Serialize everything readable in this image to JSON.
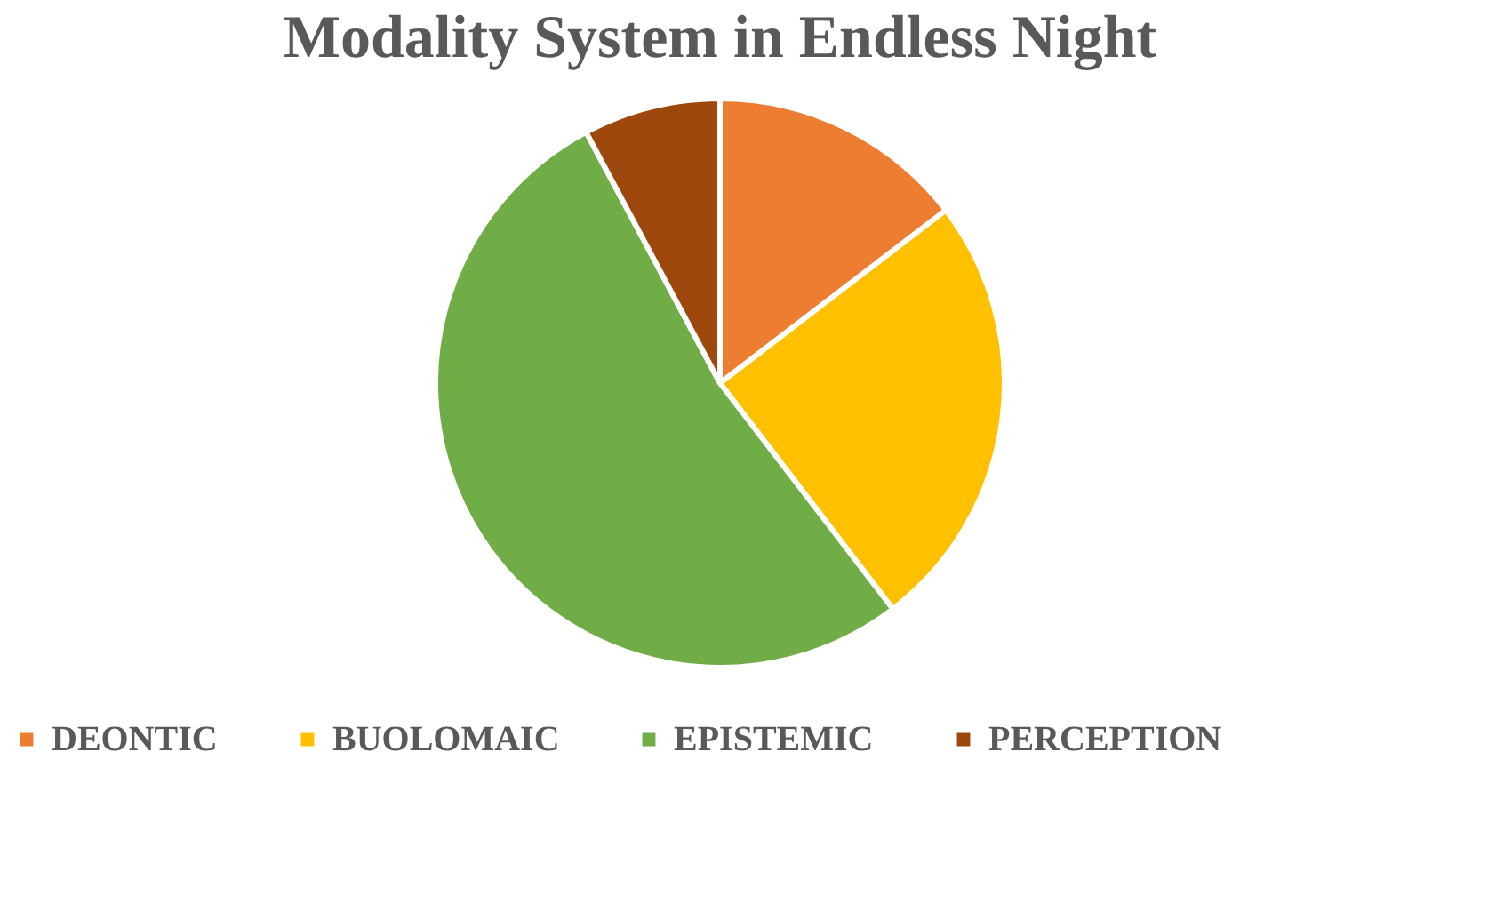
{
  "chart_data": {
    "type": "pie",
    "title": "Modality System in Endless Night",
    "categories": [
      "DEONTIC",
      "BUOLOMAIC",
      "EPISTEMIC",
      "PERCEPTION"
    ],
    "values": [
      14.6,
      25.0,
      52.6,
      7.8
    ],
    "colors": [
      "#ed7d31",
      "#ffc000",
      "#70ad47",
      "#9e480e"
    ],
    "legend": "bottom"
  }
}
